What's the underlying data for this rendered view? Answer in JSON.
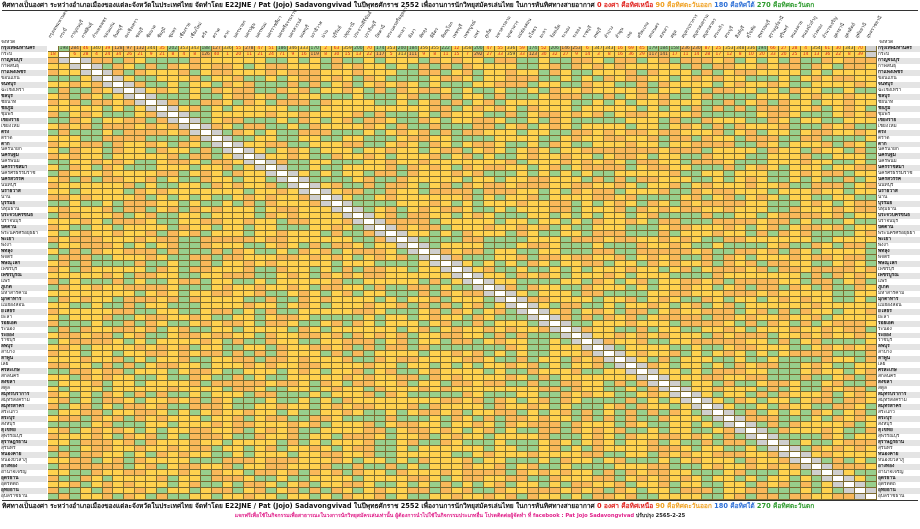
{
  "title": {
    "main": "ทิศทางเป็นองศา ระหว่างอำเภอเมืองของแต่ละจังหวัดในประเทศไทย จัดทำโดย E22JNE / Pat (Jojo) Sadavongvivad ในปีพุทธศักราช 2552 เพื่องานการนักวิทยุสมัครเล่นไทย ในการหันทิศทางสายอากาศ",
    "north": "0 องศา คือทิศเหนือ",
    "east": "90 คือทิศตะวันออก",
    "south": "180 คือทิศใต้",
    "west": "270 คือทิศตะวันตก"
  },
  "footer": {
    "note": "แจกฟรีเพื่อใช้ในกิจกรรมเพื่อสาธารณะในวงการนักวิทยุสมัครเล่นเท่านั้น ผู้ต้องการนำไปใช้ในกิจกรรมประเภทอื่น โปรดติดต่อผู้จัดทำ ที่ facebook : Pat Jojo Sadavongvivad",
    "updated": "ปรับปรุง 2565-2-25"
  },
  "header_label": "จังหวัด",
  "colors": {
    "north": "#e0201b",
    "east": "#f0a020",
    "south": "#2d6fd6",
    "west": "#2e9b2e"
  },
  "provinces": [
    "กรุงเทพมหานคร",
    "กระบี่",
    "กาญจนบุรี",
    "กาฬสินธุ์",
    "กำแพงเพชร",
    "ขอนแก่น",
    "จันทบุรี",
    "ฉะเชิงเทรา",
    "ชลบุรี",
    "ชัยนาท",
    "ชัยภูมิ",
    "ชุมพร",
    "เชียงราย",
    "เชียงใหม่",
    "ตรัง",
    "ตราด",
    "ตาก",
    "นครนายก",
    "นครปฐม",
    "นครพนม",
    "นครราชสีมา",
    "นครศรีธรรมราช",
    "นครสวรรค์",
    "นนทบุรี",
    "นราธิวาส",
    "น่าน",
    "บุรีรัมย์",
    "ปทุมธานี",
    "ประจวบคีรีขันธ์",
    "ปราจีนบุรี",
    "ปัตตานี",
    "พระนครศรีอยุธยา",
    "พะเยา",
    "พังงา",
    "พัทลุง",
    "พิจิตร",
    "พิษณุโลก",
    "เพชรบุรี",
    "เพชรบูรณ์",
    "แพร่",
    "ภูเก็ต",
    "มหาสารคาม",
    "มุกดาหาร",
    "แม่ฮ่องสอน",
    "ยโสธร",
    "ยะลา",
    "ร้อยเอ็ด",
    "ระนอง",
    "ระยอง",
    "ราชบุรี",
    "ลพบุรี",
    "ลำปาง",
    "ลำพูน",
    "เลย",
    "ศรีสะเกษ",
    "สกลนคร",
    "สงขลา",
    "สตูล",
    "สมุทรปราการ",
    "สมุทรสงคราม",
    "สมุทรสาคร",
    "สระแก้ว",
    "สระบุรี",
    "สิงห์บุรี",
    "สุโขทัย",
    "สุพรรณบุรี",
    "สุราษฎร์ธานี",
    "สุรินทร์",
    "หนองคาย",
    "หนองบัวลำภู",
    "อ่างทอง",
    "อำนาจเจริญ",
    "อุดรธานี",
    "อุตรดิตถ์",
    "อุทัยธานี",
    "อุบลราชธานี"
  ],
  "matrix_rows": [
    [
      null,
      198,
      284,
      46,
      340,
      39,
      128,
      97,
      132,
      344,
      35,
      202,
      353,
      343,
      188,
      127,
      336,
      55,
      278,
      47,
      51,
      186,
      346,
      333,
      170,
      2,
      63,
      359,
      200,
      70,
      174,
      353,
      200,
      184,
      356,
      355,
      222,
      12,
      358,
      200,
      47,
      55,
      336,
      59,
      174,
      52,
      206,
      146,
      253,
      6,
      347,
      343,
      16,
      69,
      45,
      179,
      184,
      158,
      236,
      230,
      87,
      25,
      353,
      348,
      336,
      194,
      66,
      27,
      28,
      4,
      354,
      61,
      30,
      343,
      70,
      null
    ],
    [
      18,
      null,
      6,
      28,
      4,
      24,
      34,
      26,
      21,
      9,
      21,
      8,
      4,
      8,
      126,
      40,
      1,
      20,
      11,
      21,
      24,
      71,
      9,
      16,
      119,
      8,
      30,
      15,
      13,
      22,
      117,
      5,
      313,
      111,
      9,
      8,
      11,
      15,
      7,
      292,
      27,
      33,
      359,
      33,
      123,
      30,
      32,
      27,
      9,
      14,
      3,
      8,
      16,
      36,
      29,
      117,
      141,
      17,
      11,
      14,
      28,
      17,
      12,
      8,
      10,
      20,
      33,
      20,
      25,
      14,
      13,
      36,
      22,
      8,
      39,
      null
    ]
  ]
}
